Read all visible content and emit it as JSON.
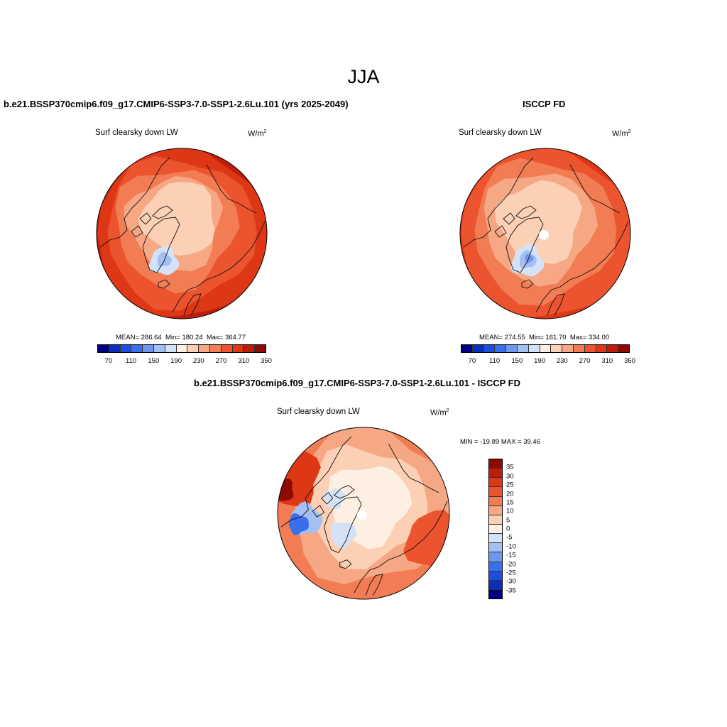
{
  "season": "JJA",
  "palette": {
    "abs": [
      "#000080",
      "#0a2fb8",
      "#1c4fe0",
      "#3a6fec",
      "#6f97ee",
      "#a4bff1",
      "#d4e2f7",
      "#fdf0e2",
      "#fbd0b5",
      "#f6a783",
      "#f27c53",
      "#eb542e",
      "#dd3716",
      "#bc1e0b",
      "#8e0a04"
    ],
    "diff": [
      "#000080",
      "#0a2fb8",
      "#1c4fe0",
      "#3a6fec",
      "#6f97ee",
      "#a4bff1",
      "#d4e2f7",
      "#fdf0e2",
      "#fbd0b5",
      "#f6a783",
      "#f27c53",
      "#eb542e",
      "#dd3716",
      "#bc1e0b",
      "#8e0a04"
    ]
  },
  "panels": {
    "model": {
      "title": "b.e21.BSSP370cmip6.f09_g17.CMIP6-SSP3-7.0-SSP1-2.6Lu.101 (yrs 2025-2049)",
      "variable": "Surf clearsky down LW",
      "units": "W/m",
      "units_sup": "2",
      "mean_label": "MEAN=",
      "mean": "286.64",
      "min_label": "Min=",
      "min": "180.24",
      "max_label": "Max=",
      "max": "364.77",
      "ticks": [
        "70",
        "110",
        "150",
        "190",
        "230",
        "270",
        "310",
        "350"
      ]
    },
    "obs": {
      "title": "ISCCP FD",
      "variable": "Surf clearsky down LW",
      "units": "W/m",
      "units_sup": "2",
      "mean_label": "MEAN=",
      "mean": "274.55",
      "min_label": "Min=",
      "min": "161.70",
      "max_label": "Max=",
      "max": "334.00",
      "ticks": [
        "70",
        "110",
        "150",
        "190",
        "230",
        "270",
        "310",
        "350"
      ]
    },
    "diff": {
      "title": "b.e21.BSSP370cmip6.f09_g17.CMIP6-SSP3-7.0-SSP1-2.6Lu.101 - ISCCP FD",
      "variable": "Surf clearsky down LW",
      "units": "W/m",
      "units_sup": "2",
      "minmax": "MIN = -19.89 MAX =  39.46",
      "ticks": [
        "35",
        "30",
        "25",
        "20",
        "15",
        "10",
        "5",
        "0",
        "-5",
        "-10",
        "-15",
        "-20",
        "-25",
        "-30",
        "-35"
      ]
    }
  }
}
